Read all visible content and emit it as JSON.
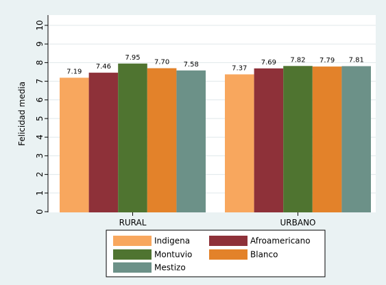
{
  "chart_data": {
    "type": "bar",
    "ylabel": "Felicidad media",
    "ylim": [
      0,
      10
    ],
    "yticks": [
      0,
      1,
      2,
      3,
      4,
      5,
      6,
      7,
      8,
      9,
      10
    ],
    "grid": true,
    "legend_position": "bottom",
    "categories": [
      "RURAL",
      "URBANO"
    ],
    "series": [
      {
        "name": "Indigena",
        "color": "#f8a75e",
        "values": [
          7.19,
          7.37
        ],
        "labels": [
          "7.19",
          "7.37"
        ]
      },
      {
        "name": "Afroamericano",
        "color": "#8e3139",
        "values": [
          7.46,
          7.69
        ],
        "labels": [
          "7.46",
          "7.69"
        ]
      },
      {
        "name": "Montuvio",
        "color": "#4f7430",
        "values": [
          7.95,
          7.82
        ],
        "labels": [
          "7.95",
          "7.82"
        ]
      },
      {
        "name": "Blanco",
        "color": "#e3822a",
        "values": [
          7.7,
          7.79
        ],
        "labels": [
          "7.70",
          "7.79"
        ]
      },
      {
        "name": "Mestizo",
        "color": "#6c9188",
        "values": [
          7.58,
          7.81
        ],
        "labels": [
          "7.58",
          "7.81"
        ]
      }
    ]
  }
}
